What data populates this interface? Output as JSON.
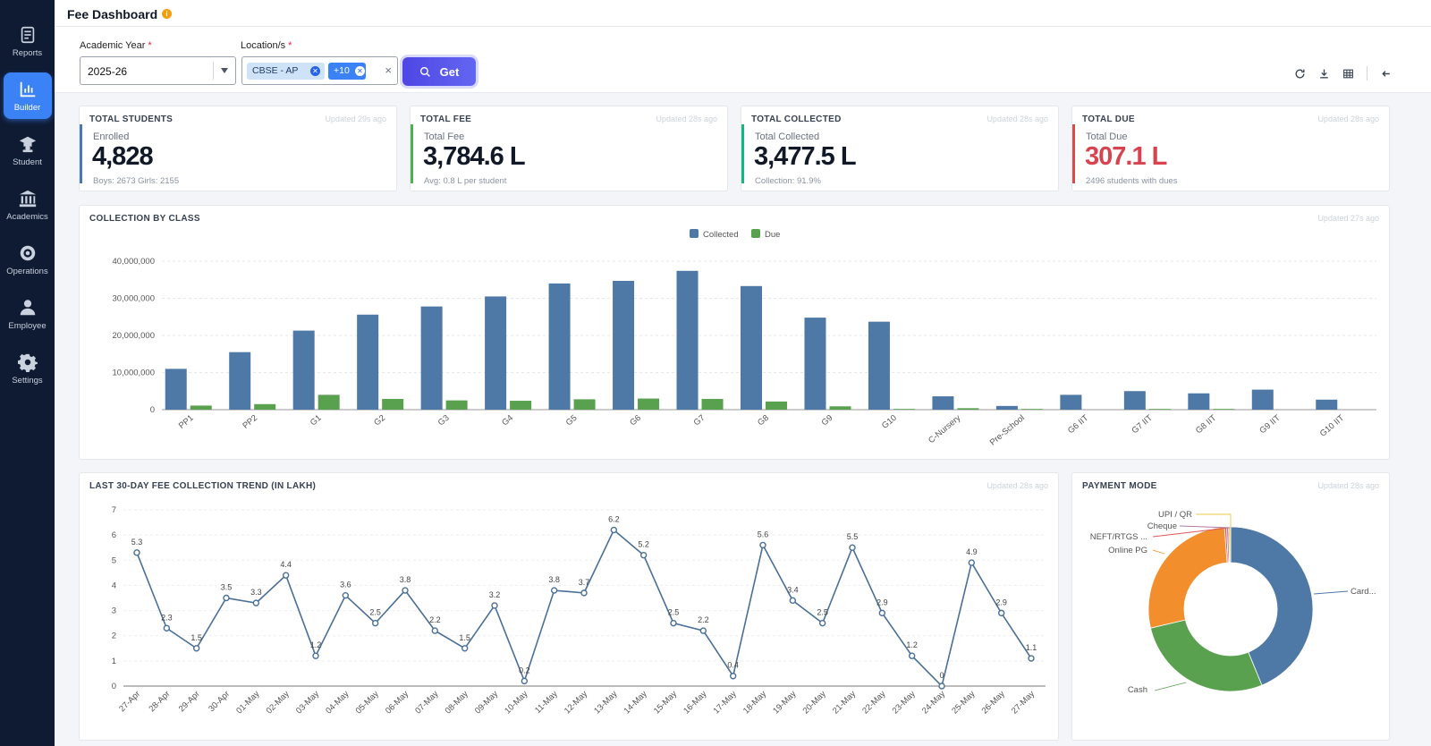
{
  "sidebar": {
    "items": [
      {
        "label": "Reports",
        "icon": "document-icon",
        "active": false
      },
      {
        "label": "Builder",
        "icon": "bar-chart-icon",
        "active": true
      },
      {
        "label": "Student",
        "icon": "graduate-icon",
        "active": false
      },
      {
        "label": "Academics",
        "icon": "bank-icon",
        "active": false
      },
      {
        "label": "Operations",
        "icon": "cog-badge-icon",
        "active": false
      },
      {
        "label": "Employee",
        "icon": "person-icon",
        "active": false
      },
      {
        "label": "Settings",
        "icon": "gear-icon",
        "active": false
      }
    ]
  },
  "header": {
    "title": "Fee Dashboard",
    "info": "i"
  },
  "filters": {
    "academic_year_label": "Academic Year",
    "academic_year_value": "2025-26",
    "location_label": "Location/s",
    "required_mark": "*",
    "location_chip": "CBSE - AP",
    "location_more": "+10",
    "clear": "×",
    "get_label": "Get"
  },
  "kpis": [
    {
      "title": "TOTAL STUDENTS",
      "updated": "Updated 29s ago",
      "sub": "Enrolled",
      "value": "4,828",
      "foot": "Boys: 2673 Girls: 2155",
      "accent": "#4a78b5",
      "value_color": "#111827"
    },
    {
      "title": "TOTAL FEE",
      "updated": "Updated 28s ago",
      "sub": "Total Fee",
      "value": "3,784.6 L",
      "foot": "Avg: 0.8 L per student",
      "accent": "#4caf50",
      "value_color": "#111827"
    },
    {
      "title": "TOTAL COLLECTED",
      "updated": "Updated 28s ago",
      "sub": "Total Collected",
      "value": "3,477.5 L",
      "foot": "Collection: 91.9%",
      "accent": "#10b981",
      "value_color": "#111827"
    },
    {
      "title": "TOTAL DUE",
      "updated": "Updated 28s ago",
      "sub": "Total Due",
      "value": "307.1 L",
      "foot": "2496 students with dues",
      "accent": "#dc4a4a",
      "value_color": "#d9434f"
    }
  ],
  "collection_card": {
    "title": "COLLECTION BY CLASS",
    "updated": "Updated 27s ago"
  },
  "trend_card": {
    "title": "LAST 30-DAY FEE COLLECTION TREND (IN LAKH)",
    "updated": "Updated 28s ago"
  },
  "payment_card": {
    "title": "PAYMENT MODE",
    "updated": "Updated 28s ago"
  },
  "chart_data": [
    {
      "type": "bar",
      "categories": [
        "PP1",
        "PP2",
        "G1",
        "G2",
        "G3",
        "G4",
        "G5",
        "G6",
        "G7",
        "G8",
        "G9",
        "G10",
        "C-Nursery",
        "Pre-School",
        "G6 IIT",
        "G7 IIT",
        "G8 IIT",
        "G9 IIT",
        "G10 IIT"
      ],
      "series": [
        {
          "name": "Collected",
          "color": "#4e79a7",
          "values": [
            11000000,
            15500000,
            21300000,
            25600000,
            27800000,
            30500000,
            34000000,
            34700000,
            37400000,
            33300000,
            24800000,
            23700000,
            3600000,
            1000000,
            4000000,
            5000000,
            4400000,
            5400000,
            2700000
          ]
        },
        {
          "name": "Due",
          "color": "#59a14f",
          "values": [
            1100000,
            1500000,
            4000000,
            2900000,
            2500000,
            2400000,
            2800000,
            3000000,
            2900000,
            2200000,
            900000,
            200000,
            400000,
            200000,
            0,
            200000,
            200000,
            0,
            0
          ]
        }
      ],
      "yticks": [
        "0",
        "10,000,000",
        "20,000,000",
        "30,000,000",
        "40,000,000"
      ],
      "ylim": [
        0,
        40000000
      ],
      "legend": "top-center",
      "grid": true
    },
    {
      "type": "line",
      "x": [
        "27-Apr",
        "28-Apr",
        "29-Apr",
        "30-Apr",
        "01-May",
        "02-May",
        "03-May",
        "04-May",
        "05-May",
        "06-May",
        "07-May",
        "08-May",
        "09-May",
        "10-May",
        "11-May",
        "12-May",
        "13-May",
        "14-May",
        "15-May",
        "16-May",
        "17-May",
        "18-May",
        "19-May",
        "20-May",
        "21-May",
        "22-May",
        "23-May",
        "24-May",
        "25-May",
        "26-May",
        "27-May"
      ],
      "values": [
        5.3,
        2.3,
        1.5,
        3.5,
        3.3,
        4.4,
        1.2,
        3.6,
        2.5,
        3.8,
        2.2,
        1.5,
        3.2,
        0.2,
        3.8,
        3.7,
        6.2,
        5.2,
        2.5,
        2.2,
        0.4,
        5.6,
        3.4,
        2.5,
        5.5,
        2.9,
        1.2,
        0,
        4.9,
        2.9,
        1.1
      ],
      "labels": [
        "5.3",
        "2.3",
        "1.5",
        "3.5",
        "3.3",
        "4.4",
        "1.2",
        "3.6",
        "2.5",
        "3.8",
        "2.2",
        "1.5",
        "3.2",
        "0.2",
        "3.8",
        "3.7",
        "6.2",
        "5.2",
        "2.5",
        "2.2",
        "0.4",
        "5.6",
        "3.4",
        "2.5",
        "5.5",
        "2.9",
        "1.2",
        "0",
        "4.9",
        "2.9",
        "1.1"
      ],
      "yticks": [
        "0",
        "1",
        "2",
        "3",
        "4",
        "5",
        "6",
        "7"
      ],
      "ylim": [
        0,
        7
      ],
      "color": "#4a6f96",
      "grid": true
    },
    {
      "type": "pie",
      "slices": [
        {
          "label": "Card...",
          "value": 43.8,
          "color": "#4e79a7"
        },
        {
          "label": "Cash",
          "value": 27.5,
          "color": "#59a14f"
        },
        {
          "label": "Online PG",
          "value": 27.5,
          "color": "#f28e2b"
        },
        {
          "label": "NEFT/RTGS ...",
          "value": 0.4,
          "color": "#e15759"
        },
        {
          "label": "Cheque",
          "value": 0.4,
          "color": "#b07aa1"
        },
        {
          "label": "UPI / QR",
          "value": 0.4,
          "color": "#edc948"
        }
      ],
      "donut": true
    }
  ]
}
